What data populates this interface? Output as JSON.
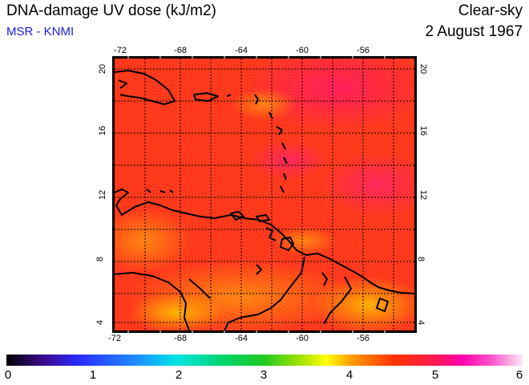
{
  "header": {
    "title": "DNA-damage UV dose (kJ/m2)",
    "source": "MSR - KNMI",
    "condition": "Clear-sky",
    "date": "2 August 1967"
  },
  "map": {
    "lon_ticks": [
      "-72",
      "-68",
      "-64",
      "-60",
      "-56"
    ],
    "lat_ticks": [
      "20",
      "16",
      "12",
      "8",
      "4"
    ],
    "lon_range": [
      -72,
      -52
    ],
    "lat_range": [
      3.5,
      20.5
    ],
    "field_color": "#ff3a1c",
    "coast_color": "#000000"
  },
  "colorbar": {
    "ticks": [
      "0",
      "1",
      "2",
      "3",
      "4",
      "5",
      "6"
    ],
    "min": 0,
    "max": 6
  }
}
